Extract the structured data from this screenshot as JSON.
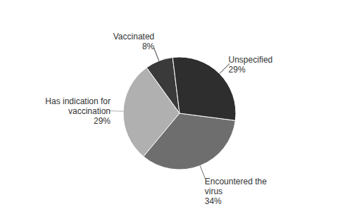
{
  "chart_data": {
    "type": "pie",
    "categories": [
      "Vaccinated",
      "Has indication for\nvaccination",
      "Encountered the\nvirus",
      "Unspecified"
    ],
    "values": [
      8,
      29,
      34,
      29
    ],
    "value_labels": [
      "8%",
      "29%",
      "34%",
      "29%"
    ],
    "colors": [
      "#3a3a3a",
      "#b0b0b0",
      "#6e6e6e",
      "#2e2e2e"
    ],
    "data_labels": true
  }
}
